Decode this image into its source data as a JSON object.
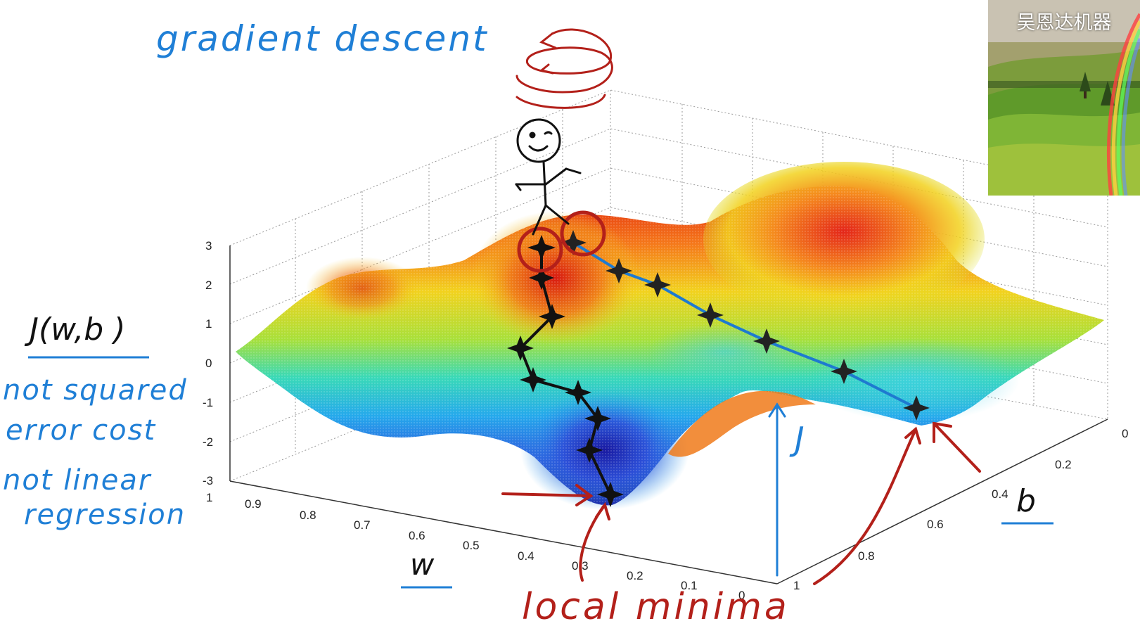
{
  "annotations": {
    "title": "gradient descent",
    "cost_label": "J(w,b )",
    "note_1_line1": "not squared",
    "note_1_line2": "error cost",
    "note_2_line1": "not linear",
    "note_2_line2": "regression",
    "axis_w": "w",
    "axis_b": "b",
    "height_marker": "J",
    "minima": "local minima"
  },
  "axes": {
    "z_ticks": [
      "3",
      "2",
      "1",
      "0",
      "-1",
      "-2",
      "-3"
    ],
    "w_ticks": [
      "1",
      "0.9",
      "0.8",
      "0.7",
      "0.6",
      "0.5",
      "0.4",
      "0.3",
      "0.2",
      "0.1",
      "0"
    ],
    "b_ticks": [
      "0",
      "0.2",
      "0.4",
      "0.6",
      "0.8",
      "1"
    ]
  },
  "thumbnail": {
    "label": "吴恩达机器"
  },
  "colors": {
    "handwriting_blue": "#1f7fd6",
    "handwriting_red": "#b3201a",
    "path_black": "#111111",
    "path_blue": "#1e7ad0"
  }
}
